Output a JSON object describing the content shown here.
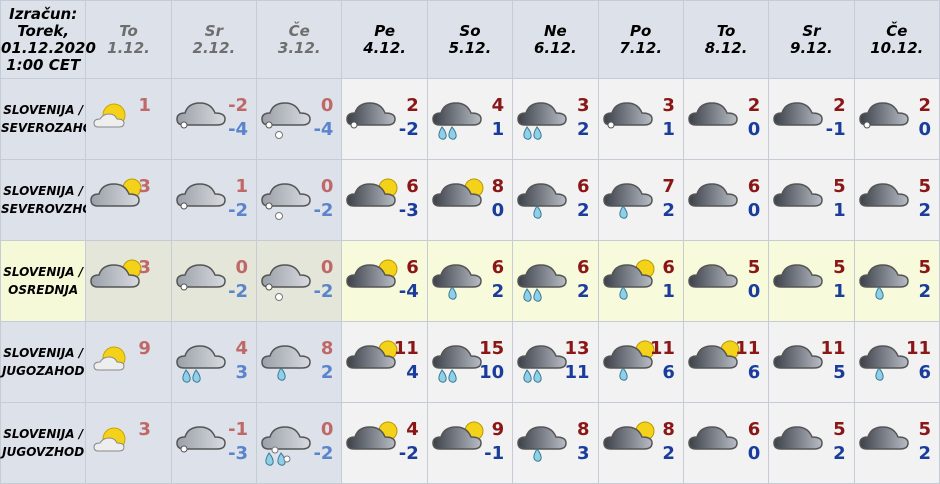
{
  "header": {
    "calc": [
      "Izračun:",
      "Torek,",
      "01.12.2020",
      "1:00 CET"
    ],
    "days": [
      {
        "day": "To",
        "date": "1.12.",
        "past": true
      },
      {
        "day": "Sr",
        "date": "2.12.",
        "past": true
      },
      {
        "day": "Če",
        "date": "3.12.",
        "past": true
      },
      {
        "day": "Pe",
        "date": "4.12.",
        "past": false
      },
      {
        "day": "So",
        "date": "5.12.",
        "past": false
      },
      {
        "day": "Ne",
        "date": "6.12.",
        "past": false
      },
      {
        "day": "Po",
        "date": "7.12.",
        "past": false
      },
      {
        "day": "To",
        "date": "8.12.",
        "past": false
      },
      {
        "day": "Sr",
        "date": "9.12.",
        "past": false
      },
      {
        "day": "Če",
        "date": "10.12.",
        "past": false
      }
    ]
  },
  "rows": [
    {
      "region": [
        "SLOVENIJA /",
        "SEVEROZAHOD"
      ],
      "highlight": false,
      "cells": [
        {
          "icon": "partly-sunny",
          "max": "1"
        },
        {
          "icon": "cloud-snow-light",
          "max": "-2",
          "min": "-4"
        },
        {
          "icon": "cloud-snow",
          "max": "0",
          "min": "-4"
        },
        {
          "icon": "cloud-snow-light",
          "max": "2",
          "min": "-2"
        },
        {
          "icon": "cloud-heavy-rain",
          "max": "4",
          "min": "1"
        },
        {
          "icon": "cloud-heavy-rain",
          "max": "3",
          "min": "2"
        },
        {
          "icon": "cloud-snow-light",
          "max": "3",
          "min": "1"
        },
        {
          "icon": "cloud",
          "max": "2",
          "min": "0"
        },
        {
          "icon": "cloud",
          "max": "2",
          "min": "-1"
        },
        {
          "icon": "cloud-snow-light",
          "max": "2",
          "min": "0"
        }
      ]
    },
    {
      "region": [
        "SLOVENIJA /",
        "SEVEROVZHOD"
      ],
      "highlight": false,
      "cells": [
        {
          "icon": "cloud-sun",
          "max": "3"
        },
        {
          "icon": "cloud-snow-light",
          "max": "1",
          "min": "-2"
        },
        {
          "icon": "cloud-snow",
          "max": "0",
          "min": "-2"
        },
        {
          "icon": "cloud-sun",
          "max": "6",
          "min": "-3"
        },
        {
          "icon": "cloud-sun",
          "max": "8",
          "min": "0"
        },
        {
          "icon": "cloud-rain",
          "max": "6",
          "min": "2"
        },
        {
          "icon": "cloud-rain",
          "max": "7",
          "min": "2"
        },
        {
          "icon": "cloud",
          "max": "6",
          "min": "0"
        },
        {
          "icon": "cloud",
          "max": "5",
          "min": "1"
        },
        {
          "icon": "cloud",
          "max": "5",
          "min": "2"
        }
      ]
    },
    {
      "region": [
        "SLOVENIJA /",
        "OSREDNJA"
      ],
      "highlight": true,
      "cells": [
        {
          "icon": "cloud-sun",
          "max": "3"
        },
        {
          "icon": "cloud-snow-light",
          "max": "0",
          "min": "-2"
        },
        {
          "icon": "cloud-snow",
          "max": "0",
          "min": "-2"
        },
        {
          "icon": "cloud-sun",
          "max": "6",
          "min": "-4"
        },
        {
          "icon": "cloud-rain",
          "max": "6",
          "min": "2"
        },
        {
          "icon": "cloud-heavy-rain",
          "max": "6",
          "min": "2"
        },
        {
          "icon": "cloud-sun-rain",
          "max": "6",
          "min": "1"
        },
        {
          "icon": "cloud",
          "max": "5",
          "min": "0"
        },
        {
          "icon": "cloud",
          "max": "5",
          "min": "1"
        },
        {
          "icon": "cloud-rain",
          "max": "5",
          "min": "2"
        }
      ]
    },
    {
      "region": [
        "SLOVENIJA /",
        "JUGOZAHOD"
      ],
      "highlight": false,
      "cells": [
        {
          "icon": "partly-sunny",
          "max": "9"
        },
        {
          "icon": "cloud-heavy-rain",
          "max": "4",
          "min": "3"
        },
        {
          "icon": "cloud-rain",
          "max": "8",
          "min": "2"
        },
        {
          "icon": "cloud-sun",
          "max": "11",
          "min": "4"
        },
        {
          "icon": "cloud-heavy-rain",
          "max": "15",
          "min": "10"
        },
        {
          "icon": "cloud-heavy-rain",
          "max": "13",
          "min": "11"
        },
        {
          "icon": "cloud-sun-rain",
          "max": "11",
          "min": "6"
        },
        {
          "icon": "cloud-sun",
          "max": "11",
          "min": "6"
        },
        {
          "icon": "cloud",
          "max": "11",
          "min": "5"
        },
        {
          "icon": "cloud-rain",
          "max": "11",
          "min": "6"
        }
      ]
    },
    {
      "region": [
        "SLOVENIJA /",
        "JUGOVZHOD"
      ],
      "highlight": false,
      "cells": [
        {
          "icon": "partly-sunny",
          "max": "3"
        },
        {
          "icon": "cloud-snow-light",
          "max": "-1",
          "min": "-3"
        },
        {
          "icon": "cloud-sleet",
          "max": "0",
          "min": "-2"
        },
        {
          "icon": "cloud-sun",
          "max": "4",
          "min": "-2"
        },
        {
          "icon": "cloud-sun",
          "max": "9",
          "min": "-1"
        },
        {
          "icon": "cloud-rain",
          "max": "8",
          "min": "3"
        },
        {
          "icon": "cloud-sun",
          "max": "8",
          "min": "2"
        },
        {
          "icon": "cloud",
          "max": "6",
          "min": "0"
        },
        {
          "icon": "cloud",
          "max": "5",
          "min": "2"
        },
        {
          "icon": "cloud",
          "max": "5",
          "min": "2"
        }
      ]
    }
  ],
  "colors": {
    "sun": "#f5d21a",
    "cloud_dark": "#3c4048",
    "cloud_light": "#8c9098",
    "drop": "#8fd0e8"
  }
}
